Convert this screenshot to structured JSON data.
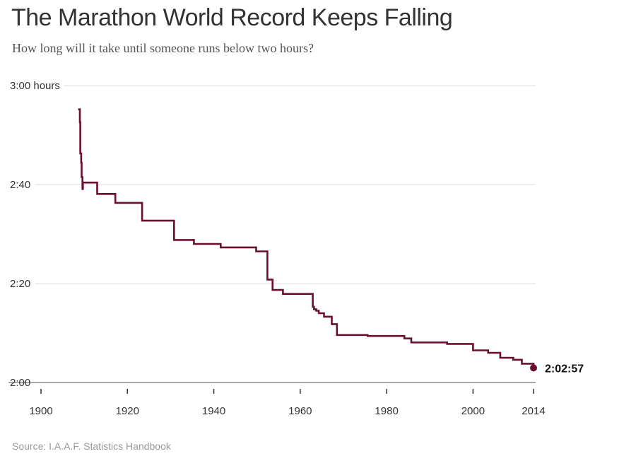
{
  "title": "The Marathon World Record Keeps Falling",
  "subtitle": "How long will it take until someone runs below two hours?",
  "source": "Source: I.A.A.F. Statistics Handbook",
  "colors": {
    "line": "#6b0f2f",
    "grid": "#dddddd",
    "text": "#333333"
  },
  "chart_data": {
    "type": "line",
    "step": "after",
    "title": "The Marathon World Record Keeps Falling",
    "subtitle": "How long will it take until someone runs below two hours?",
    "xlabel": "",
    "ylabel": "",
    "xlim": [
      1900,
      2014
    ],
    "ylim": [
      120,
      180
    ],
    "y_unit": "minutes",
    "grid": true,
    "xticks": [
      {
        "value": 1900,
        "label": "1900"
      },
      {
        "value": 1920,
        "label": "1920"
      },
      {
        "value": 1940,
        "label": "1940"
      },
      {
        "value": 1960,
        "label": "1960"
      },
      {
        "value": 1980,
        "label": "1980"
      },
      {
        "value": 2000,
        "label": "2000"
      },
      {
        "value": 2014,
        "label": "2014"
      }
    ],
    "yticks": [
      {
        "value": 120,
        "label": "2:00"
      },
      {
        "value": 140,
        "label": "2:20"
      },
      {
        "value": 160,
        "label": "2:40"
      },
      {
        "value": 180,
        "label": "3:00 hours"
      }
    ],
    "series": [
      {
        "name": "",
        "x": [
          1908.6,
          1909.0,
          1909.1,
          1909.3,
          1909.4,
          1909.6,
          1909.7,
          1913.0,
          1917.2,
          1923.4,
          1930.8,
          1935.4,
          1941.6,
          1949.8,
          1952.4,
          1953.6,
          1956.0,
          1962.9,
          1963.2,
          1963.7,
          1964.3,
          1965.5,
          1967.3,
          1968.5,
          1975.6,
          1984.1,
          1985.7,
          1994.0,
          2000.0,
          2003.5,
          2006.3,
          2009.3,
          2011.3,
          2014.0
        ],
        "y": [
          175.2,
          172.6,
          166.3,
          164.4,
          161.5,
          159.1,
          160.4,
          158.1,
          156.3,
          152.7,
          148.8,
          148.0,
          147.3,
          146.5,
          140.8,
          138.7,
          137.9,
          135.3,
          134.8,
          134.5,
          134.0,
          133.3,
          131.8,
          129.6,
          129.4,
          128.9,
          128.1,
          127.8,
          126.5,
          126.0,
          125.0,
          124.6,
          123.8,
          123.0
        ]
      }
    ],
    "end_point": {
      "x": 2014.0,
      "y": 122.95,
      "label": "2:02:57"
    }
  }
}
